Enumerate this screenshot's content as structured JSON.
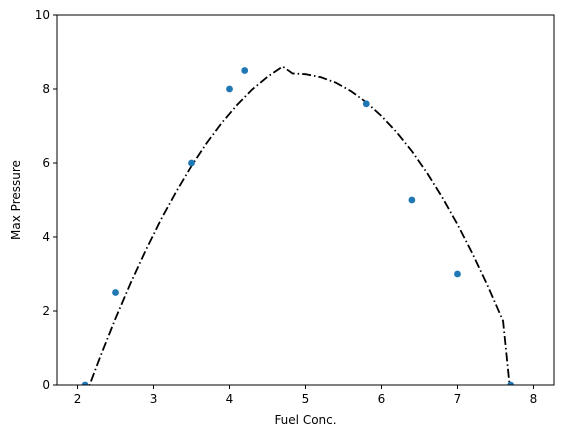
{
  "chart_data": {
    "type": "scatter",
    "title": "",
    "xlabel": "Fuel Conc.",
    "ylabel": "Max Pressure",
    "xlim": [
      1.73,
      8.27
    ],
    "ylim": [
      0,
      10
    ],
    "xticks": [
      2,
      3,
      4,
      5,
      6,
      7,
      8
    ],
    "yticks": [
      0,
      2,
      4,
      6,
      8,
      10
    ],
    "grid": false,
    "series": [
      {
        "kind": "points",
        "color": "#1f77b4",
        "x": [
          2.1,
          2.5,
          3.5,
          4.0,
          4.2,
          5.8,
          6.4,
          7.0,
          7.7
        ],
        "y": [
          0.0,
          2.5,
          6.0,
          8.0,
          8.5,
          7.6,
          5.0,
          3.0,
          0.0
        ]
      },
      {
        "kind": "fit-curve",
        "color": "#000000",
        "line_style": "dash-dot",
        "x": [
          2.1,
          2.3,
          2.5,
          2.7,
          2.9,
          3.1,
          3.3,
          3.5,
          3.7,
          3.9,
          4.1,
          4.3,
          4.5,
          4.7,
          4.83,
          5.0,
          5.2,
          5.4,
          5.6,
          5.8,
          6.0,
          6.2,
          6.4,
          6.6,
          6.8,
          7.0,
          7.2,
          7.4,
          7.6,
          7.7
        ],
        "y": [
          -0.32,
          0.77,
          1.8,
          2.76,
          3.65,
          4.48,
          5.23,
          5.92,
          6.54,
          7.09,
          7.57,
          7.99,
          8.33,
          8.61,
          8.42,
          8.4,
          8.32,
          8.17,
          7.94,
          7.64,
          7.27,
          6.83,
          6.32,
          5.73,
          5.07,
          4.34,
          3.54,
          2.67,
          1.73,
          -0.3
        ]
      }
    ]
  }
}
